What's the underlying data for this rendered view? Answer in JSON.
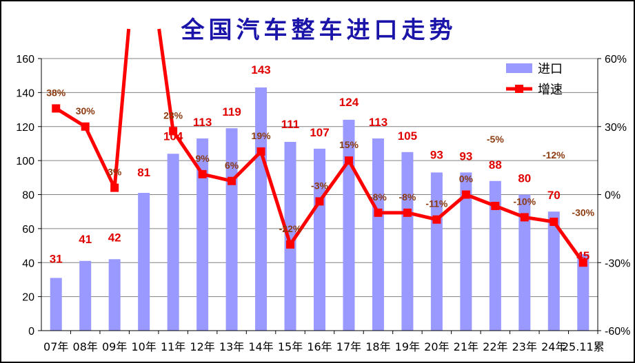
{
  "chart_data": {
    "type": "bar+line",
    "title": "全国汽车整车进口走势",
    "categories": [
      "07年",
      "08年",
      "09年",
      "10年",
      "11年",
      "12年",
      "13年",
      "14年",
      "15年",
      "16年",
      "17年",
      "18年",
      "19年",
      "20年",
      "21年",
      "22年",
      "23年",
      "24年",
      "25.11累"
    ],
    "series": [
      {
        "name": "进口",
        "type": "bar",
        "axis": "left",
        "color": "#9999ff",
        "values": [
          31,
          41,
          42,
          81,
          104,
          113,
          119,
          143,
          111,
          107,
          124,
          113,
          105,
          93,
          93,
          88,
          80,
          70,
          45
        ]
      },
      {
        "name": "增速",
        "type": "line",
        "axis": "right",
        "color": "#ff0000",
        "values": [
          38,
          30,
          3,
          null,
          28,
          9,
          6,
          19,
          -22,
          -3,
          15,
          -8,
          -8,
          -11,
          0,
          -5,
          -10,
          -12,
          -30
        ],
        "labels": [
          "38%",
          "30%",
          "3%",
          "",
          "28%",
          "9%",
          "6%",
          "19%",
          "-22%",
          "-3%",
          "15%",
          "-8%",
          "-8%",
          "-11%",
          "0%",
          "-5%",
          "-10%",
          "-12%",
          "-30%"
        ]
      }
    ],
    "y_left": {
      "min": 0,
      "max": 160,
      "step": 20,
      "ticks": [
        "0",
        "20",
        "40",
        "60",
        "80",
        "100",
        "120",
        "140",
        "160"
      ]
    },
    "y_right": {
      "min": -60,
      "max": 60,
      "ticks": [
        "-60%",
        "-30%",
        "0%",
        "30%",
        "60%"
      ]
    },
    "grid": true,
    "legend": "top-right"
  }
}
